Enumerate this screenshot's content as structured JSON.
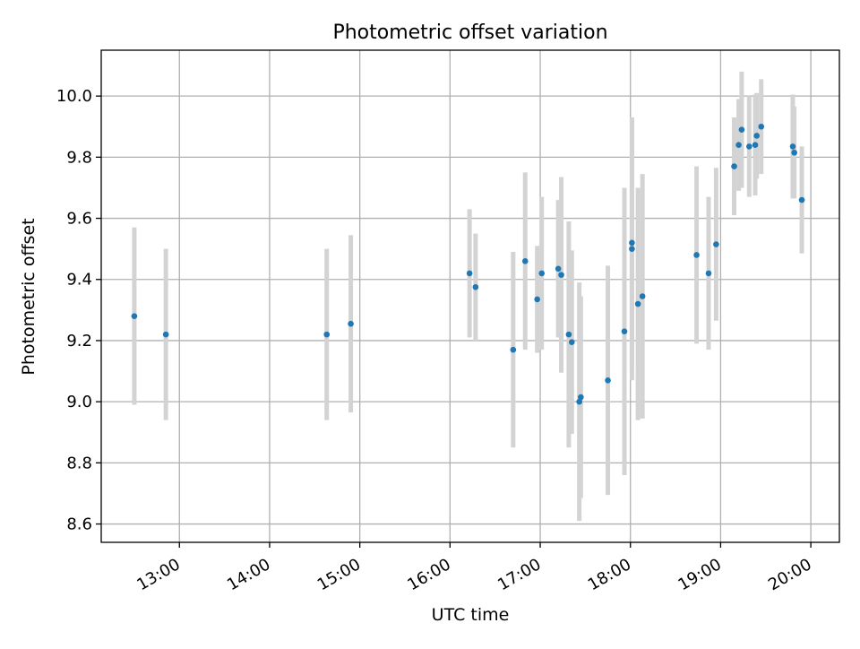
{
  "chart_data": {
    "type": "scatter",
    "title": "Photometric offset variation",
    "xlabel": "UTC time",
    "ylabel": "Photometric offset",
    "xlim": [
      "12:08",
      "20:19"
    ],
    "ylim": [
      8.54,
      10.15
    ],
    "grid": true,
    "x_tick_labels": [
      "13:00",
      "14:00",
      "15:00",
      "16:00",
      "17:00",
      "18:00",
      "19:00",
      "20:00"
    ],
    "y_tick_labels": [
      "8.6",
      "8.8",
      "9.0",
      "9.2",
      "9.4",
      "9.6",
      "9.8",
      "10.0"
    ],
    "y_ticks": [
      8.6,
      8.8,
      9.0,
      9.2,
      9.4,
      9.6,
      9.8,
      10.0
    ],
    "colors": {
      "point": "#1f77b4",
      "errorbar": "#d3d3d3",
      "grid": "#b0b0b0"
    },
    "series": [
      {
        "points": [
          {
            "x": "12:30",
            "y": 9.28,
            "err": 0.29
          },
          {
            "x": "12:51",
            "y": 9.22,
            "err": 0.28
          },
          {
            "x": "14:38",
            "y": 9.22,
            "err": 0.28
          },
          {
            "x": "14:54",
            "y": 9.255,
            "err": 0.29
          },
          {
            "x": "16:13",
            "y": 9.42,
            "err": 0.21
          },
          {
            "x": "16:17",
            "y": 9.375,
            "err": 0.175
          },
          {
            "x": "16:42",
            "y": 9.17,
            "err": 0.32
          },
          {
            "x": "16:50",
            "y": 9.46,
            "err": 0.29
          },
          {
            "x": "16:58",
            "y": 9.335,
            "err": 0.175
          },
          {
            "x": "17:01",
            "y": 9.42,
            "err": 0.25
          },
          {
            "x": "17:12",
            "y": 9.435,
            "err": 0.225
          },
          {
            "x": "17:14",
            "y": 9.415,
            "err": 0.32
          },
          {
            "x": "17:19",
            "y": 9.22,
            "err": 0.37
          },
          {
            "x": "17:21",
            "y": 9.195,
            "err": 0.3
          },
          {
            "x": "17:26",
            "y": 9.0,
            "err": 0.39
          },
          {
            "x": "17:27",
            "y": 9.015,
            "err": 0.33
          },
          {
            "x": "17:45",
            "y": 9.07,
            "err": 0.375
          },
          {
            "x": "17:56",
            "y": 9.23,
            "err": 0.47
          },
          {
            "x": "18:01",
            "y": 9.52,
            "err": 0.41
          },
          {
            "x": "18:01",
            "y": 9.5,
            "err": 0.43
          },
          {
            "x": "18:05",
            "y": 9.32,
            "err": 0.38
          },
          {
            "x": "18:08",
            "y": 9.345,
            "err": 0.4
          },
          {
            "x": "18:44",
            "y": 9.48,
            "err": 0.29
          },
          {
            "x": "18:52",
            "y": 9.42,
            "err": 0.25
          },
          {
            "x": "18:57",
            "y": 9.515,
            "err": 0.25
          },
          {
            "x": "19:09",
            "y": 9.77,
            "err": 0.16
          },
          {
            "x": "19:12",
            "y": 9.84,
            "err": 0.15
          },
          {
            "x": "19:14",
            "y": 9.89,
            "err": 0.19
          },
          {
            "x": "19:19",
            "y": 9.835,
            "err": 0.165
          },
          {
            "x": "19:23",
            "y": 9.84,
            "err": 0.165
          },
          {
            "x": "19:24",
            "y": 9.87,
            "err": 0.14
          },
          {
            "x": "19:27",
            "y": 9.9,
            "err": 0.155
          },
          {
            "x": "19:48",
            "y": 9.835,
            "err": 0.17
          },
          {
            "x": "19:49",
            "y": 9.815,
            "err": 0.15
          },
          {
            "x": "19:54",
            "y": 9.66,
            "err": 0.175
          }
        ]
      }
    ]
  }
}
